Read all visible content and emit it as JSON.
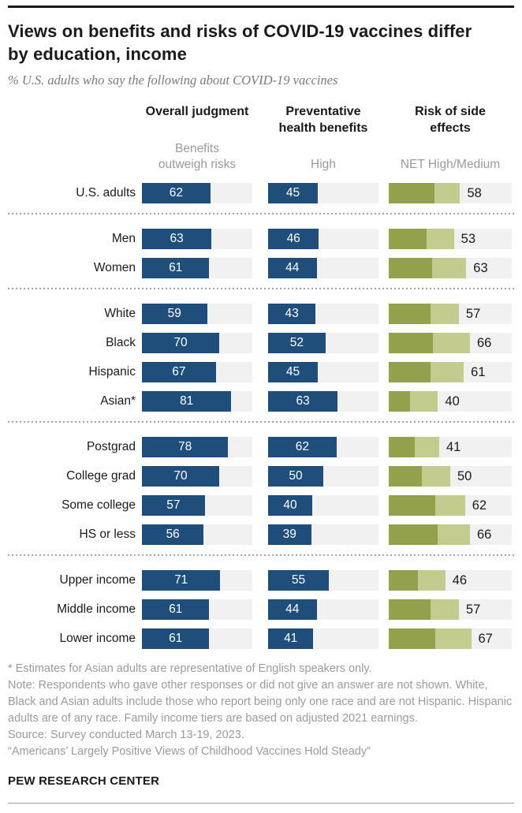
{
  "colors": {
    "bar_blue": "#1e4e79",
    "risk_high": "#94a14c",
    "risk_medium": "#c3cc8e",
    "track_gray": "#f0f1f0",
    "text_dark": "#1a1a1a",
    "text_gray": "#9a9a9a"
  },
  "chart_data": {
    "type": "bar",
    "title": "Views on benefits and risks of COVID-19 vaccines differ by education, income",
    "subtitle": "% U.S. adults who say the following about COVID-19 vaccines",
    "xlim": [
      0,
      100
    ],
    "grid": false,
    "legend_position": "column-headers",
    "columns": [
      {
        "header": "Overall judgment",
        "subheader": "Benefits outweigh risks",
        "bar_type": "single",
        "color": "#1e4e79"
      },
      {
        "header": "Preventative health benefits",
        "subheader": "High",
        "bar_type": "single",
        "color": "#1e4e79"
      },
      {
        "header": "Risk of side effects",
        "subheader": "NET High/Medium",
        "bar_type": "stacked",
        "colors": [
          "#94a14c",
          "#c3cc8e"
        ]
      }
    ],
    "groups": [
      {
        "name": "total",
        "rows": [
          {
            "label": "U.S. adults",
            "overall_judgment": 62,
            "preventative_health": 45,
            "risk_net": 58,
            "risk_segments_est": [
              37,
              21
            ]
          }
        ]
      },
      {
        "name": "gender",
        "rows": [
          {
            "label": "Men",
            "overall_judgment": 63,
            "preventative_health": 46,
            "risk_net": 53,
            "risk_segments_est": [
              31,
              22
            ]
          },
          {
            "label": "Women",
            "overall_judgment": 61,
            "preventative_health": 44,
            "risk_net": 63,
            "risk_segments_est": [
              35,
              28
            ]
          }
        ]
      },
      {
        "name": "race-ethnicity",
        "rows": [
          {
            "label": "White",
            "overall_judgment": 59,
            "preventative_health": 43,
            "risk_net": 57,
            "risk_segments_est": [
              34,
              23
            ]
          },
          {
            "label": "Black",
            "overall_judgment": 70,
            "preventative_health": 52,
            "risk_net": 66,
            "risk_segments_est": [
              36,
              30
            ]
          },
          {
            "label": "Hispanic",
            "overall_judgment": 67,
            "preventative_health": 45,
            "risk_net": 61,
            "risk_segments_est": [
              34,
              27
            ]
          },
          {
            "label": "Asian*",
            "overall_judgment": 81,
            "preventative_health": 63,
            "risk_net": 40,
            "risk_segments_est": [
              17,
              23
            ]
          }
        ]
      },
      {
        "name": "education",
        "rows": [
          {
            "label": "Postgrad",
            "overall_judgment": 78,
            "preventative_health": 62,
            "risk_net": 41,
            "risk_segments_est": [
              21,
              20
            ]
          },
          {
            "label": "College grad",
            "overall_judgment": 70,
            "preventative_health": 50,
            "risk_net": 50,
            "risk_segments_est": [
              27,
              23
            ]
          },
          {
            "label": "Some college",
            "overall_judgment": 57,
            "preventative_health": 40,
            "risk_net": 62,
            "risk_segments_est": [
              38,
              24
            ]
          },
          {
            "label": "HS or less",
            "overall_judgment": 56,
            "preventative_health": 39,
            "risk_net": 66,
            "risk_segments_est": [
              40,
              26
            ]
          }
        ]
      },
      {
        "name": "income",
        "rows": [
          {
            "label": "Upper income",
            "overall_judgment": 71,
            "preventative_health": 55,
            "risk_net": 46,
            "risk_segments_est": [
              24,
              22
            ]
          },
          {
            "label": "Middle income",
            "overall_judgment": 61,
            "preventative_health": 44,
            "risk_net": 57,
            "risk_segments_est": [
              34,
              23
            ]
          },
          {
            "label": "Lower income",
            "overall_judgment": 61,
            "preventative_health": 41,
            "risk_net": 67,
            "risk_segments_est": [
              38,
              29
            ]
          }
        ]
      }
    ]
  },
  "footnotes": {
    "asterisk": "* Estimates for Asian adults are representative of English speakers only.",
    "note": "Note: Respondents who gave other responses or did not give an answer are not shown. White, Black and Asian adults include those who report being only one race and are not Hispanic. Hispanic adults are of any race. Family income tiers are based on adjusted 2021 earnings.",
    "source": "Source: Survey conducted March 13-19, 2023.",
    "report": "“Americans’ Largely Positive Views of Childhood Vaccines Hold Steady”"
  },
  "brand": "PEW RESEARCH CENTER"
}
